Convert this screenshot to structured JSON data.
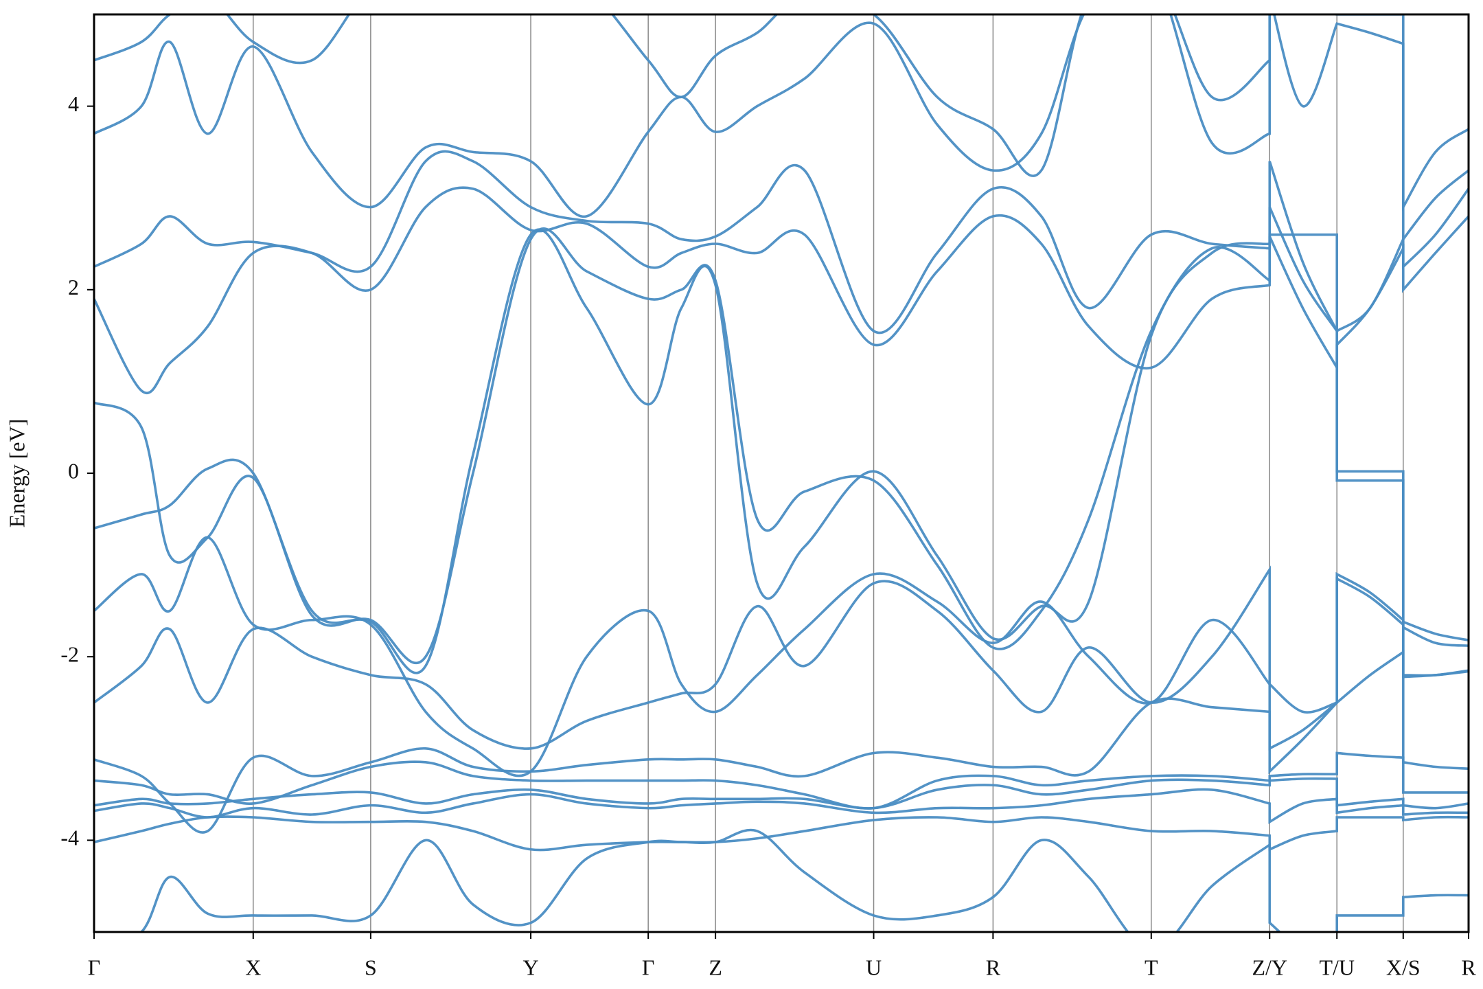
{
  "chart_data": {
    "type": "line",
    "ylabel": "Energy [eV]",
    "x": [
      0,
      0.5,
      0.8,
      1.2,
      1.68,
      2.3,
      2.92,
      3.5,
      4.0,
      4.61,
      5.2,
      5.85,
      6.2,
      6.56,
      7.0,
      7.5,
      8.23,
      8.9,
      9.49,
      10.0,
      10.5,
      11.16,
      11.8,
      12.41,
      12.41,
      12.76,
      13.12,
      13.12,
      13.47,
      13.82,
      13.82,
      14.16,
      14.51
    ],
    "xlim": [
      0,
      14.51
    ],
    "xticks": [
      {
        "value": 0,
        "label": "Γ"
      },
      {
        "value": 1.68,
        "label": "X"
      },
      {
        "value": 2.92,
        "label": "S"
      },
      {
        "value": 4.61,
        "label": "Y"
      },
      {
        "value": 5.85,
        "label": "Γ"
      },
      {
        "value": 6.56,
        "label": "Z"
      },
      {
        "value": 8.23,
        "label": "U"
      },
      {
        "value": 9.49,
        "label": "R"
      },
      {
        "value": 11.16,
        "label": "T"
      },
      {
        "value": 12.41,
        "label": "Z/Y"
      },
      {
        "value": 13.12,
        "label": "T/U"
      },
      {
        "value": 13.82,
        "label": "X/S"
      },
      {
        "value": 14.51,
        "label": "R"
      }
    ],
    "ylim": [
      -5,
      5
    ],
    "yticks": [
      -4,
      -2,
      0,
      2,
      4
    ],
    "grid": true,
    "series": [
      {
        "color": "#4a8dc3",
        "values": [
          -4.02,
          -3.9,
          -3.82,
          -3.75,
          -3.75,
          -3.8,
          -3.8,
          -3.8,
          -3.9,
          -4.1,
          -4.05,
          -4.02,
          -4.02,
          -4.02,
          -3.98,
          -3.9,
          -3.78,
          -3.75,
          -3.8,
          -3.75,
          -3.8,
          -3.9,
          -3.9,
          -3.95,
          -4.1,
          -3.95,
          -3.9,
          -3.75,
          -3.75,
          -3.75,
          -3.78,
          -3.75,
          -3.75
        ]
      },
      {
        "color": "#4a8dc3",
        "values": [
          -3.68,
          -3.6,
          -3.65,
          -3.75,
          -3.65,
          -3.72,
          -3.62,
          -3.7,
          -3.6,
          -3.5,
          -3.6,
          -3.65,
          -3.62,
          -3.6,
          -3.58,
          -3.6,
          -3.7,
          -3.65,
          -3.65,
          -3.62,
          -3.55,
          -3.5,
          -3.45,
          -3.6,
          -3.8,
          -3.6,
          -3.55,
          -3.7,
          -3.65,
          -3.62,
          -3.72,
          -3.7,
          -3.7
        ]
      },
      {
        "color": "#4a8dc3",
        "values": [
          -3.62,
          -3.55,
          -3.6,
          -3.6,
          -3.55,
          -3.5,
          -3.48,
          -3.6,
          -3.5,
          -3.45,
          -3.55,
          -3.6,
          -3.55,
          -3.55,
          -3.55,
          -3.55,
          -3.65,
          -3.45,
          -3.4,
          -3.5,
          -3.45,
          -3.35,
          -3.35,
          -3.4,
          -3.35,
          -3.33,
          -3.33,
          -3.62,
          -3.58,
          -3.55,
          -3.62,
          -3.65,
          -3.6
        ]
      },
      {
        "color": "#4a8dc3",
        "values": [
          -3.35,
          -3.4,
          -3.5,
          -3.5,
          -3.6,
          -3.4,
          -3.2,
          -3.15,
          -3.3,
          -3.35,
          -3.35,
          -3.35,
          -3.35,
          -3.35,
          -3.4,
          -3.5,
          -3.65,
          -3.35,
          -3.3,
          -3.4,
          -3.35,
          -3.3,
          -3.3,
          -3.35,
          -3.3,
          -3.28,
          -3.28,
          -3.05,
          -3.08,
          -3.1,
          -3.48,
          -3.48,
          -3.48
        ]
      },
      {
        "color": "#4a8dc3",
        "values": [
          -3.12,
          -3.3,
          -3.6,
          -3.9,
          -3.1,
          -3.3,
          -3.15,
          -3.0,
          -3.2,
          -3.25,
          -3.18,
          -3.12,
          -3.12,
          -3.12,
          -3.2,
          -3.3,
          -3.05,
          -3.1,
          -3.2,
          -3.2,
          -3.25,
          -2.5,
          -2.55,
          -2.6,
          -3.0,
          -2.8,
          -2.5,
          -1.1,
          -1.3,
          -1.6,
          -3.15,
          -3.2,
          -3.22
        ]
      },
      {
        "color": "#4a8dc3",
        "values": [
          -2.5,
          -2.1,
          -1.7,
          -2.5,
          -1.7,
          -2.0,
          -2.2,
          -2.3,
          -2.8,
          -3.0,
          -2.7,
          -2.5,
          -2.4,
          -2.3,
          -1.45,
          -2.1,
          -1.2,
          -1.5,
          -2.15,
          -2.6,
          -1.9,
          -2.5,
          -2.0,
          -1.05,
          -2.3,
          -2.6,
          -2.5,
          -1.15,
          -1.35,
          -1.65,
          -2.2,
          -2.2,
          -2.15
        ]
      },
      {
        "color": "#4a8dc3",
        "values": [
          -1.5,
          -1.1,
          -1.5,
          -0.7,
          -1.65,
          -1.6,
          -1.65,
          -2.6,
          -3.0,
          -3.25,
          -2.0,
          -1.5,
          -2.3,
          -2.6,
          -2.2,
          -1.7,
          -1.1,
          -1.4,
          -1.85,
          -1.4,
          -2.0,
          -2.5,
          -1.6,
          -2.3,
          -3.25,
          -2.9,
          -2.5,
          -2.5,
          -2.2,
          -1.95,
          -2.22,
          -2.2,
          -2.16
        ]
      },
      {
        "color": "#4a8dc3",
        "values": [
          -0.6,
          -0.45,
          -0.35,
          0.05,
          0.0,
          -1.5,
          -1.62,
          -2.1,
          0.2,
          2.6,
          1.8,
          0.75,
          1.8,
          2.05,
          -1.2,
          -0.8,
          0.02,
          -0.9,
          -1.8,
          -1.45,
          -1.4,
          1.5,
          2.4,
          2.5,
          2.6,
          2.6,
          2.6,
          0.02,
          0.02,
          0.02,
          -1.62,
          -1.75,
          -1.82
        ]
      },
      {
        "color": "#4a8dc3",
        "values": [
          0.77,
          0.5,
          -0.9,
          -0.7,
          -0.05,
          -1.55,
          -1.6,
          -2.0,
          0.0,
          2.55,
          2.2,
          1.9,
          2.0,
          2.1,
          -0.5,
          -0.2,
          -0.08,
          -1.0,
          -1.9,
          -1.5,
          -0.5,
          1.55,
          2.45,
          2.1,
          2.9,
          2.1,
          1.55,
          -0.08,
          -0.08,
          -0.08,
          -1.68,
          -1.85,
          -1.88
        ]
      },
      {
        "color": "#4a8dc3",
        "values": [
          1.9,
          0.9,
          1.2,
          1.6,
          2.4,
          2.4,
          2.0,
          2.9,
          3.1,
          2.65,
          2.72,
          2.25,
          2.4,
          2.5,
          2.4,
          2.6,
          1.4,
          2.2,
          2.8,
          2.5,
          1.6,
          1.15,
          1.9,
          2.05,
          2.58,
          1.8,
          1.15,
          1.4,
          1.8,
          2.45,
          2.0,
          2.4,
          2.8
        ]
      },
      {
        "color": "#4a8dc3",
        "values": [
          2.25,
          2.5,
          2.8,
          2.5,
          2.52,
          2.4,
          2.25,
          3.4,
          3.4,
          2.9,
          2.75,
          2.72,
          2.55,
          2.58,
          2.9,
          3.3,
          1.55,
          2.4,
          3.1,
          2.8,
          1.8,
          2.6,
          2.5,
          2.45,
          3.4,
          2.3,
          1.55,
          1.55,
          1.8,
          2.55,
          2.25,
          2.6,
          3.1
        ]
      },
      {
        "color": "#4a8dc3",
        "values": [
          3.7,
          4.0,
          4.7,
          3.7,
          4.65,
          3.5,
          2.9,
          3.55,
          3.5,
          3.4,
          2.8,
          3.72,
          4.1,
          3.72,
          4.0,
          4.3,
          4.9,
          3.8,
          3.3,
          3.7,
          5.1,
          5.5,
          3.6,
          3.7,
          5.2,
          4.0,
          4.9,
          4.9,
          4.8,
          4.68,
          2.9,
          3.5,
          3.75
        ]
      },
      {
        "color": "#4a8dc3",
        "values": [
          4.5,
          4.7,
          5.0,
          5.2,
          4.7,
          4.5,
          5.3,
          5.5,
          5.5,
          5.5,
          5.3,
          4.5,
          4.1,
          4.55,
          4.8,
          5.2,
          5.0,
          4.1,
          3.75,
          3.3,
          5.2,
          5.5,
          4.1,
          4.5,
          5.5,
          5.5,
          5.5,
          5.0,
          5.0,
          5.0,
          2.55,
          3.0,
          3.3
        ]
      },
      {
        "color": "#4a8dc3",
        "values": [
          -5.2,
          -5.0,
          -4.4,
          -4.8,
          -4.82,
          -4.82,
          -4.82,
          -4.0,
          -4.7,
          -4.9,
          -4.2,
          -4.02,
          -4.02,
          -4.02,
          -3.9,
          -4.35,
          -4.82,
          -4.82,
          -4.62,
          -4.0,
          -4.4,
          -5.2,
          -4.5,
          -4.05,
          -4.9,
          -5.2,
          -5.3,
          -4.82,
          -4.82,
          -4.82,
          -4.62,
          -4.6,
          -4.6
        ]
      }
    ]
  }
}
